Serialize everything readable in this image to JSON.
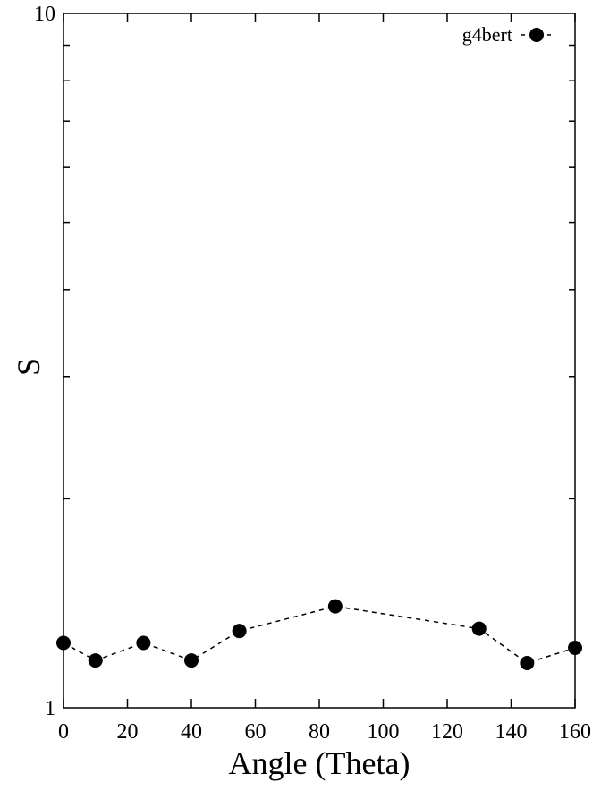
{
  "chart_data": {
    "type": "scatter",
    "title": "",
    "xlabel": "Angle (Theta)",
    "ylabel": "S",
    "xlim": [
      0,
      160
    ],
    "ylim": [
      1,
      10
    ],
    "y_scale": "log",
    "x_ticks": [
      0,
      20,
      40,
      60,
      80,
      100,
      120,
      140,
      160
    ],
    "y_ticks": [
      1,
      10
    ],
    "y_tick_labels": [
      "1",
      "10"
    ],
    "grid": false,
    "legend_position": "top-right",
    "series": [
      {
        "name": "g4bert",
        "marker": "filled-circle",
        "line": "dashed",
        "color": "#000000",
        "x": [
          0,
          10,
          25,
          40,
          55,
          85,
          130,
          145,
          160
        ],
        "y": [
          1.24,
          1.17,
          1.24,
          1.17,
          1.29,
          1.4,
          1.3,
          1.16,
          1.22
        ]
      }
    ]
  }
}
